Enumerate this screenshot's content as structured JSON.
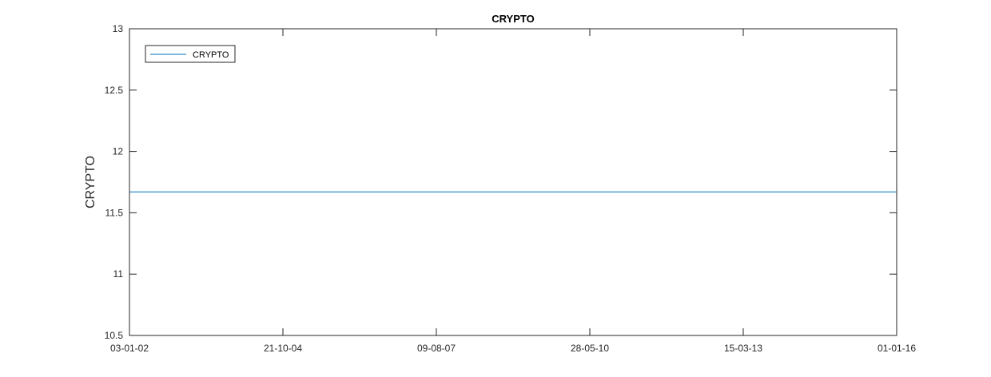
{
  "chart_data": {
    "type": "line",
    "title": "CRYPTO",
    "xlabel": "",
    "ylabel": "CRYPTO",
    "x_tick_labels": [
      "03-01-02",
      "21-10-04",
      "09-08-07",
      "28-05-10",
      "15-03-13",
      "01-01-16"
    ],
    "y_tick_labels": [
      "10.5",
      "11",
      "11.5",
      "12",
      "12.5",
      "13"
    ],
    "ylim": [
      10.5,
      13
    ],
    "xlim": [
      "2002-01-03",
      "2016-01-01"
    ],
    "grid": false,
    "legend_position": "top-left",
    "series": [
      {
        "name": "CRYPTO",
        "color": "#0072BD",
        "x": [
          "2002-01-03",
          "2016-01-01"
        ],
        "y": [
          11.67,
          11.67
        ]
      }
    ]
  }
}
